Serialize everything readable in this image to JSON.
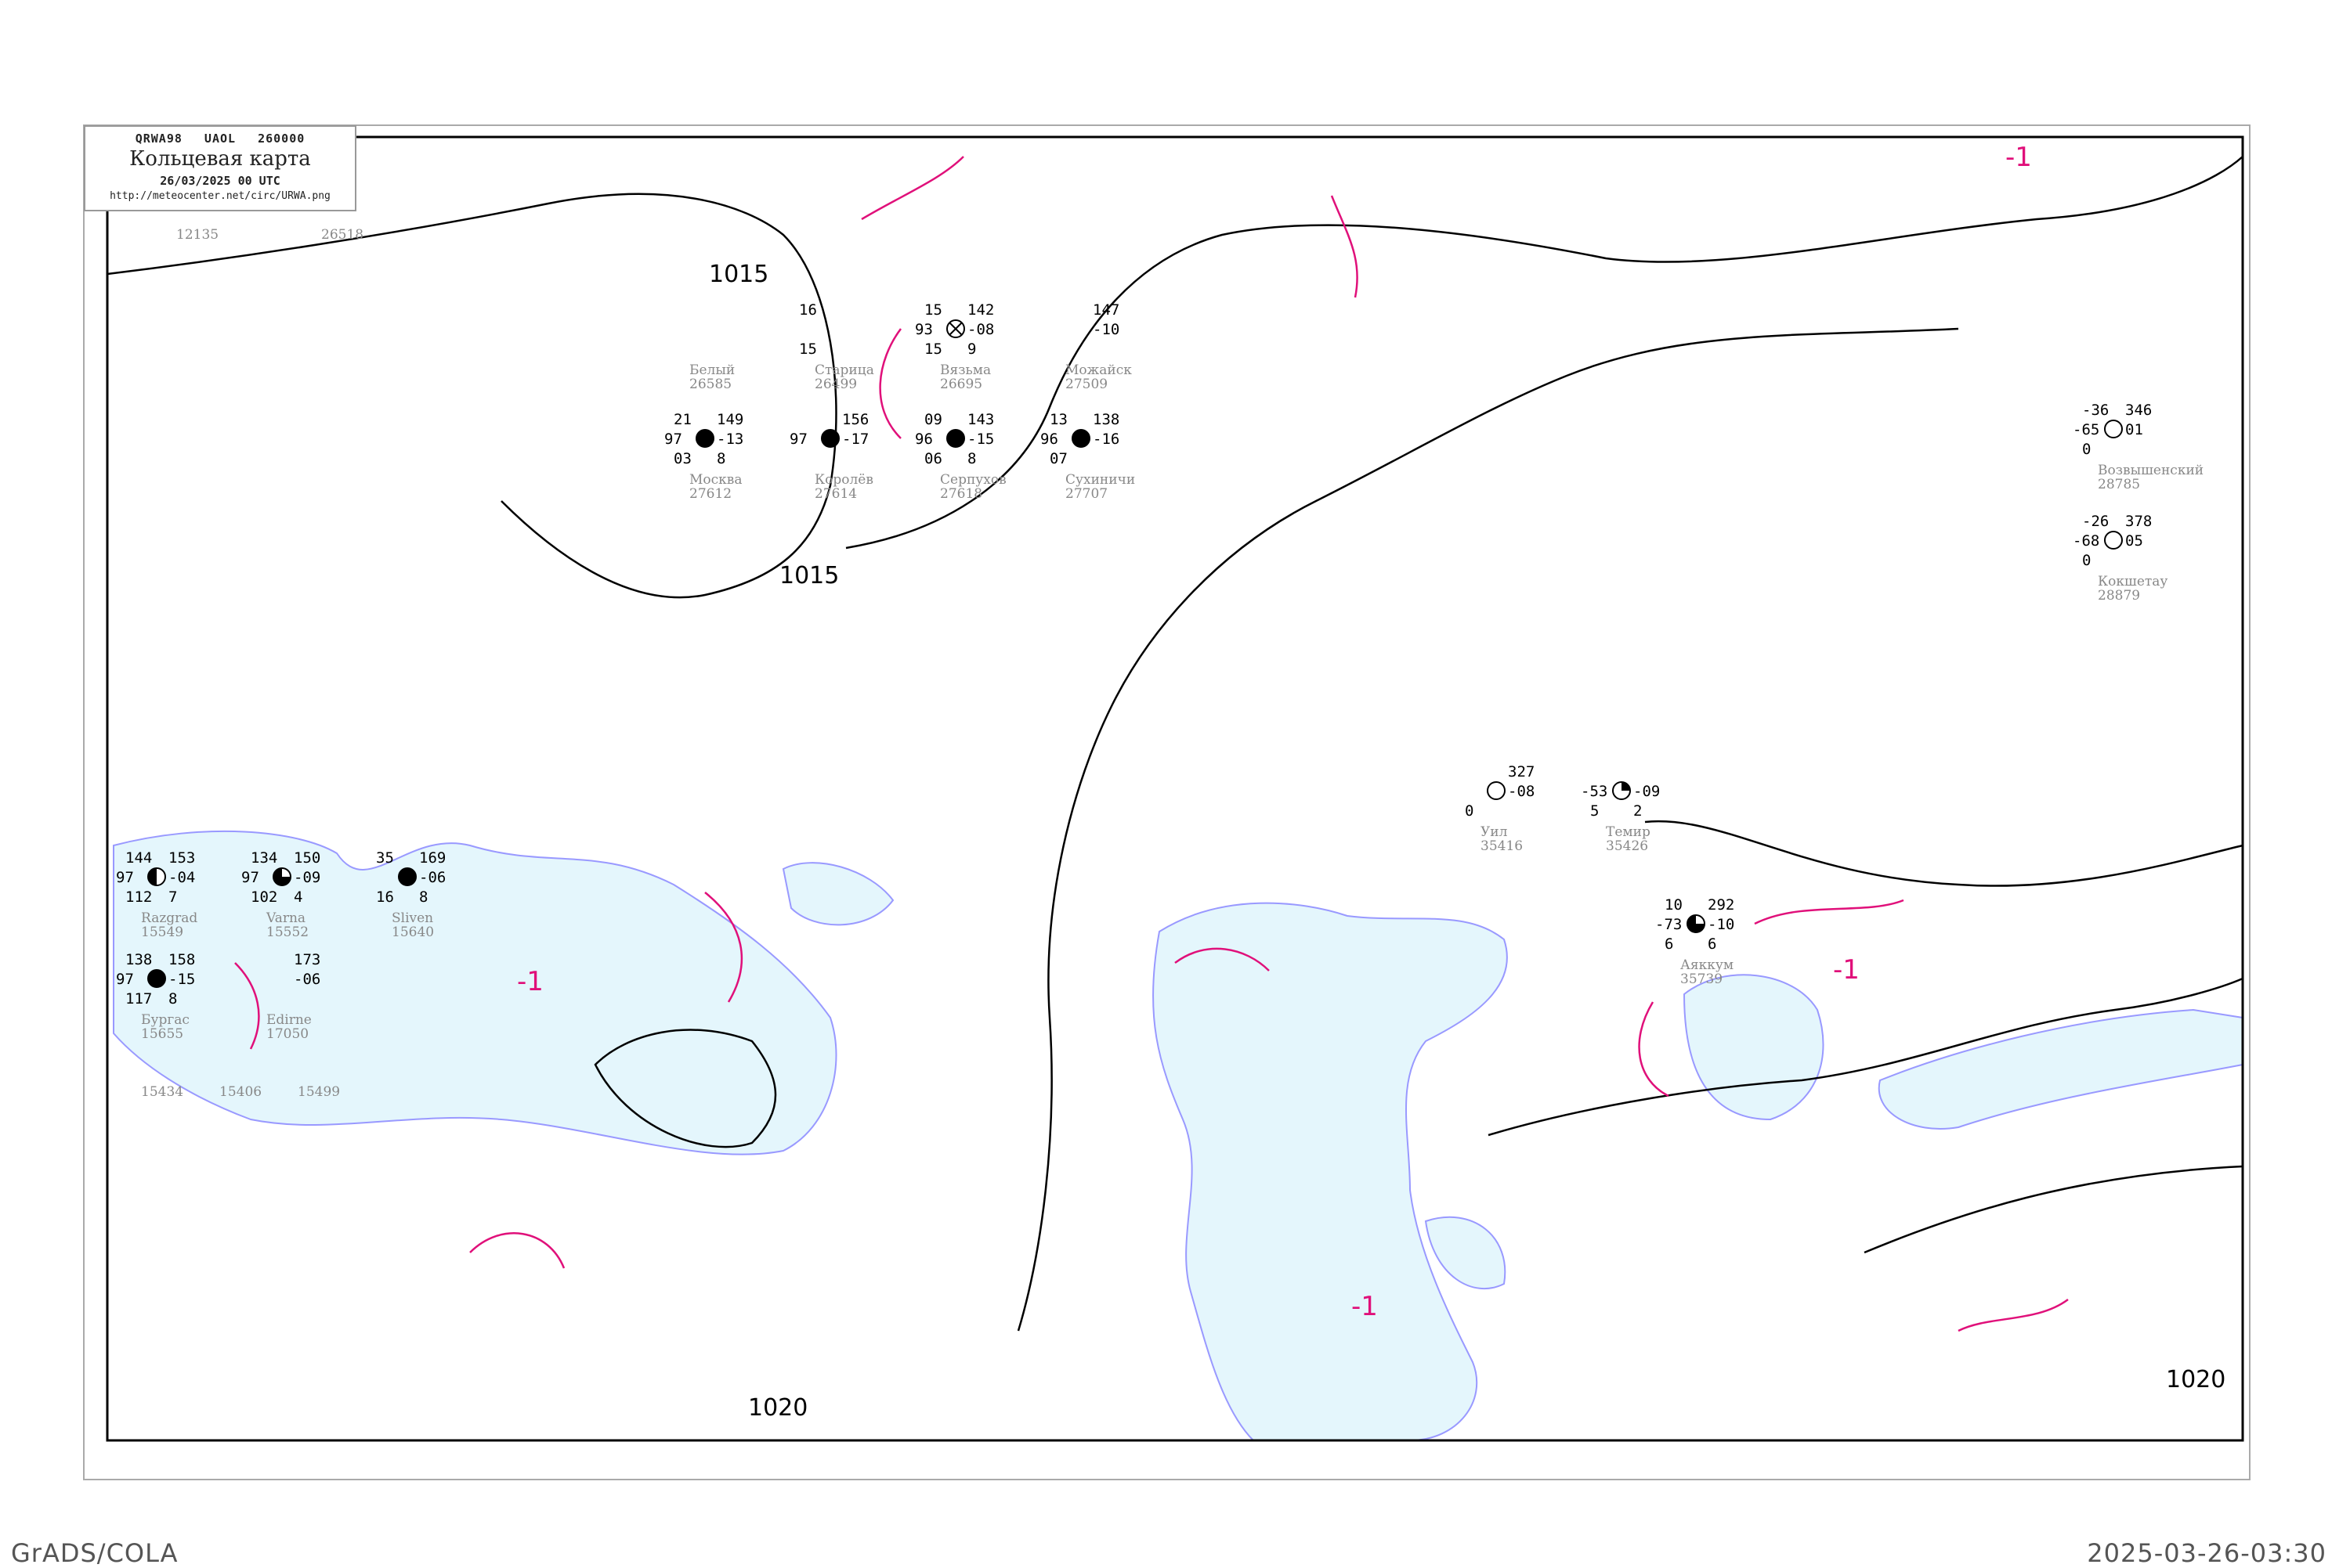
{
  "header": {
    "bulletin": "QRWA98   UAOL   260000",
    "title": "Кольцевая карта",
    "datetime": "26/03/2025 00 UTC",
    "url": "http://meteocenter.net/circ/URWA.png"
  },
  "footer": {
    "left": "GrADS/COLA",
    "right": "2025-03-26-03:30"
  },
  "colors": {
    "water": "#e4f6fc",
    "coastline": "#9999ff",
    "isobar": "#000000",
    "isallobar": "#e0107a",
    "precip_green": "#22cc44",
    "precip_blue": "#3399ff",
    "precip_yellow": "#ffff99"
  },
  "isobar_labels": [
    "1015",
    "1015",
    "1020",
    "1020"
  ],
  "tendency_labels": [
    "-1",
    "-1",
    "-1",
    "-1"
  ],
  "stations": [
    {
      "name": "Белый",
      "id": "26585",
      "top": "",
      "left": "",
      "pressure": "",
      "tend": "",
      "dew": "",
      "symbol": "none"
    },
    {
      "name": "Старица",
      "id": "26499",
      "top": "16",
      "left": "",
      "pressure": "",
      "tend": "",
      "dew": "15",
      "symbol": "none"
    },
    {
      "name": "Вязьма",
      "id": "26695",
      "top": "15",
      "left": "93",
      "pressure": "142",
      "tend": "-08",
      "dew": "15",
      "extra": "9",
      "symbol": "obscured"
    },
    {
      "name": "Можайск",
      "id": "27509",
      "top": "",
      "left": "",
      "pressure": "147",
      "tend": "-10",
      "dew": "",
      "symbol": "none"
    },
    {
      "name": "Москва",
      "id": "27612",
      "top": "21",
      "left": "97",
      "pressure": "149",
      "tend": "-13",
      "dew": "03",
      "extra": "8",
      "symbol": "overcast"
    },
    {
      "name": "Королёв",
      "id": "27614",
      "top": "",
      "left": "97",
      "pressure": "156",
      "tend": "-17",
      "dew": "",
      "symbol": "overcast"
    },
    {
      "name": "Серпухов",
      "id": "27618",
      "top": "09",
      "left": "96",
      "pressure": "143",
      "tend": "-15",
      "dew": "06",
      "extra": "8",
      "symbol": "overcast"
    },
    {
      "name": "Сухиничи",
      "id": "27707",
      "top": "13",
      "left": "96",
      "pressure": "138",
      "tend": "-16",
      "dew": "07",
      "symbol": "overcast"
    },
    {
      "name": "Razgrad",
      "id": "15549",
      "top": "144",
      "left": "97",
      "pressure": "153",
      "tend": "-04",
      "dew": "112",
      "extra": "7",
      "symbol": "half"
    },
    {
      "name": "Varna",
      "id": "15552",
      "top": "134",
      "left": "97",
      "pressure": "150",
      "tend": "-09",
      "dew": "102",
      "extra": "4",
      "symbol": "three-quarter"
    },
    {
      "name": "Sliven",
      "id": "15640",
      "top": "35",
      "left": "",
      "pressure": "169",
      "tend": "-06",
      "dew": "16",
      "extra": "8",
      "symbol": "overcast"
    },
    {
      "name": "Бургас",
      "id": "15655",
      "top": "138",
      "left": "97",
      "pressure": "158",
      "tend": "-15",
      "dew": "117",
      "extra": "8",
      "symbol": "overcast"
    },
    {
      "name": "Edirne",
      "id": "17050",
      "top": "",
      "left": "",
      "pressure": "173",
      "tend": "-06",
      "dew": "",
      "symbol": "none"
    },
    {
      "name": "Уил",
      "id": "35416",
      "top": "",
      "left": "",
      "pressure": "327",
      "tend": "-08",
      "dew": "0",
      "symbol": "clear"
    },
    {
      "name": "Темир",
      "id": "35426",
      "top": "",
      "left": "-53",
      "pressure": "",
      "tend": "-09",
      "dew": "5",
      "extra": "2",
      "symbol": "quarter"
    },
    {
      "name": "Аяккум",
      "id": "35739",
      "top": "10",
      "left": "-73",
      "pressure": "292",
      "tend": "-10",
      "dew": "6",
      "extra": "6",
      "symbol": "three-quarter"
    },
    {
      "name": "Возвышенский",
      "id": "28785",
      "top": "-36",
      "left": "-65",
      "pressure": "346",
      "tend": "01",
      "dew": "0",
      "symbol": "clear"
    },
    {
      "name": "Кокшетау",
      "id": "28879",
      "top": "-26",
      "left": "-68",
      "pressure": "378",
      "tend": "05",
      "dew": "0",
      "symbol": "clear"
    }
  ],
  "station_id_labels": [
    "15434",
    "15406",
    "15499",
    "12135",
    "26518"
  ]
}
